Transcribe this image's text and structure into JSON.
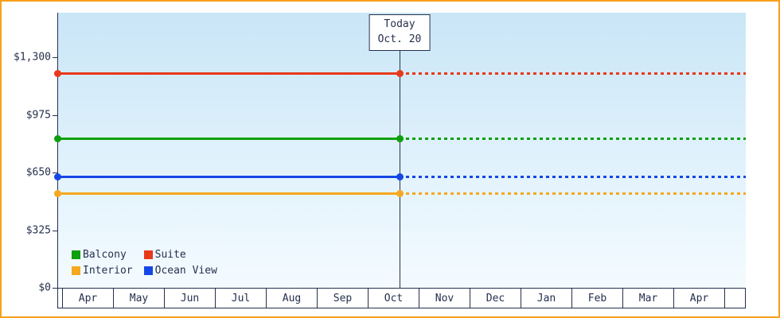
{
  "colors": {
    "frame_border": "#f8a01d",
    "plot_gradient_top": "#c9e6f7",
    "plot_gradient_bottom": "#f4fbff",
    "axis": "#25304d",
    "text": "#25304d"
  },
  "chart_data": {
    "type": "line",
    "title": "",
    "x_months": [
      "Apr",
      "May",
      "Jun",
      "Jul",
      "Aug",
      "Sep",
      "Oct",
      "Nov",
      "Dec",
      "Jan",
      "Feb",
      "Mar",
      "Apr"
    ],
    "y_ticks": [
      {
        "label": "$0",
        "value": 0
      },
      {
        "label": "$325",
        "value": 325
      },
      {
        "label": "$650",
        "value": 650
      },
      {
        "label": "$975",
        "value": 975
      },
      {
        "label": "$1,300",
        "value": 1300
      }
    ],
    "ylim": [
      0,
      1300
    ],
    "grid": false,
    "today": {
      "label_line1": "Today",
      "label_line2": "Oct. 20",
      "month_index": 6,
      "day_fraction": 0.63
    },
    "series": [
      {
        "name": "Suite",
        "color": "#e8391b",
        "value": 1210,
        "before_today": "solid",
        "after_today": "dotted"
      },
      {
        "name": "Balcony",
        "color": "#0d9f0d",
        "value": 845,
        "before_today": "solid",
        "after_today": "dotted"
      },
      {
        "name": "Ocean View",
        "color": "#1447e6",
        "value": 629,
        "before_today": "solid",
        "after_today": "dotted"
      },
      {
        "name": "Interior",
        "color": "#f5a81f",
        "value": 535,
        "before_today": "solid",
        "after_today": "dotted"
      }
    ],
    "legend": {
      "position": "bottom-left",
      "items": [
        {
          "label": "Balcony",
          "color": "#0d9f0d"
        },
        {
          "label": "Suite",
          "color": "#e8391b"
        },
        {
          "label": "Interior",
          "color": "#f5a81f"
        },
        {
          "label": "Ocean View",
          "color": "#1447e6"
        }
      ]
    }
  }
}
